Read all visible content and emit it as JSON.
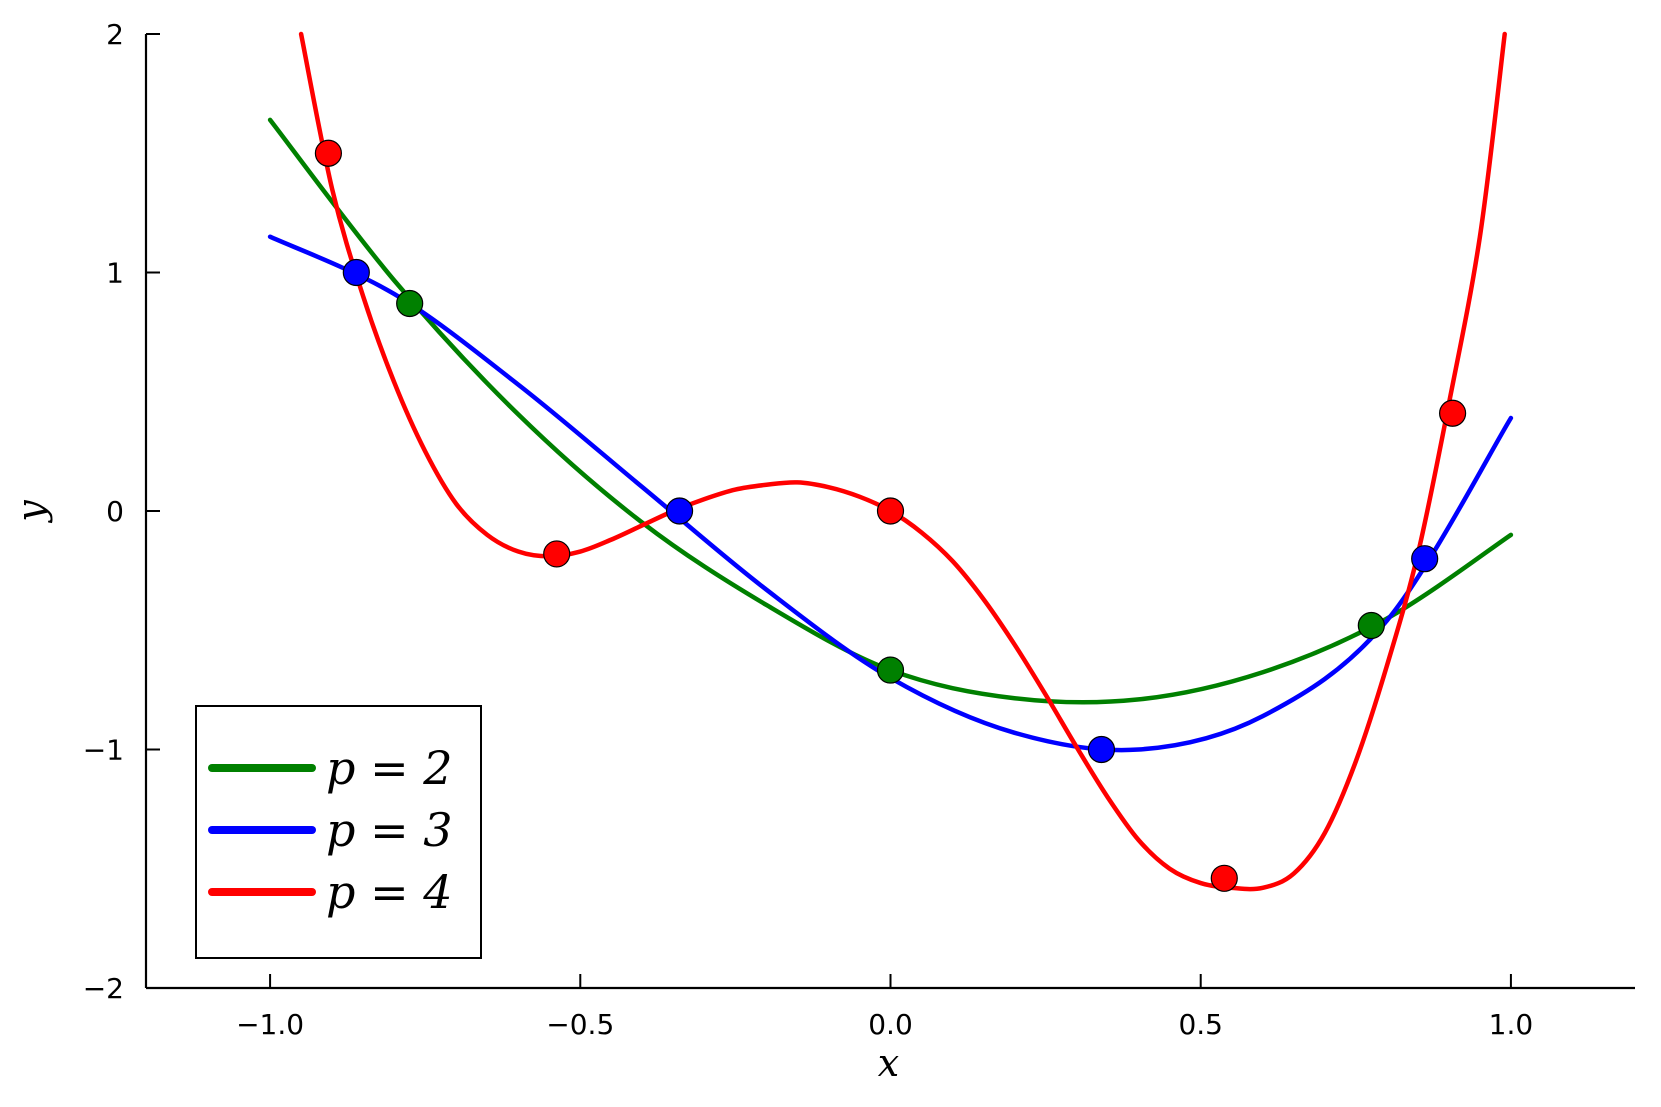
{
  "chart_data": {
    "type": "line",
    "title": "",
    "xlabel": "x",
    "ylabel": "y",
    "xlim": [
      -1.2,
      1.2
    ],
    "ylim": [
      -2,
      2
    ],
    "x_ticks": [
      -1.0,
      -0.5,
      0.0,
      0.5,
      1.0
    ],
    "x_tick_labels": [
      "−1.0",
      "−0.5",
      "0.0",
      "0.5",
      "1.0"
    ],
    "y_ticks": [
      -2,
      -1,
      0,
      1,
      2
    ],
    "y_tick_labels": [
      "−2",
      "−1",
      "0",
      "1",
      "2"
    ],
    "grid": false,
    "legend_position": "bottom-left",
    "series": [
      {
        "name": "p = 2",
        "color": "#008000",
        "x": [
          -1.0,
          -0.8,
          -0.6,
          -0.4,
          -0.2,
          0.0,
          0.2,
          0.4,
          0.6,
          0.8,
          1.0
        ],
        "y": [
          1.64,
          0.967,
          0.405,
          -0.049,
          -0.394,
          -0.667,
          -0.785,
          -0.79,
          -0.676,
          -0.451,
          -0.1
        ]
      },
      {
        "name": "p = 3",
        "color": "#0000ff",
        "x": [
          -1.0,
          -0.8,
          -0.6,
          -0.4,
          -0.2,
          0.0,
          0.2,
          0.4,
          0.6,
          0.8,
          1.0
        ],
        "y": [
          1.15,
          0.91,
          0.53,
          0.1,
          -0.33,
          -0.7,
          -0.93,
          -1.0,
          -0.86,
          -0.46,
          0.39
        ]
      },
      {
        "name": "p = 4",
        "color": "#ff0000",
        "x": [
          -0.95,
          -0.9,
          -0.85,
          -0.8,
          -0.75,
          -0.7,
          -0.65,
          -0.6,
          -0.55,
          -0.5,
          -0.45,
          -0.4,
          -0.35,
          -0.3,
          -0.25,
          -0.2,
          -0.15,
          -0.1,
          -0.05,
          0.0,
          0.05,
          0.1,
          0.15,
          0.2,
          0.25,
          0.3,
          0.35,
          0.4,
          0.45,
          0.5,
          0.55,
          0.6,
          0.65,
          0.7,
          0.75,
          0.8,
          0.85,
          0.9,
          0.95,
          0.99
        ],
        "y": [
          2.0,
          1.35,
          0.9,
          0.54,
          0.25,
          0.03,
          -0.1,
          -0.17,
          -0.19,
          -0.17,
          -0.12,
          -0.06,
          0.0,
          0.05,
          0.09,
          0.11,
          0.12,
          0.1,
          0.06,
          0.0,
          -0.09,
          -0.21,
          -0.37,
          -0.56,
          -0.77,
          -0.99,
          -1.2,
          -1.38,
          -1.5,
          -1.56,
          -1.58,
          -1.58,
          -1.52,
          -1.35,
          -1.05,
          -0.65,
          -0.18,
          0.45,
          1.15,
          2.0
        ]
      }
    ],
    "points": [
      {
        "series": "p = 2",
        "color": "#008000",
        "x": [
          -0.775,
          0.0,
          0.775
        ],
        "y": [
          0.87,
          -0.667,
          -0.48
        ]
      },
      {
        "series": "p = 3",
        "color": "#0000ff",
        "x": [
          -0.861,
          -0.34,
          0.34,
          0.861
        ],
        "y": [
          1.0,
          0.0,
          -1.0,
          -0.2
        ]
      },
      {
        "series": "p = 4",
        "color": "#ff0000",
        "x": [
          -0.906,
          -0.538,
          0.0,
          0.538,
          0.906
        ],
        "y": [
          1.5,
          -0.18,
          0.0,
          -1.54,
          0.41
        ]
      }
    ]
  }
}
